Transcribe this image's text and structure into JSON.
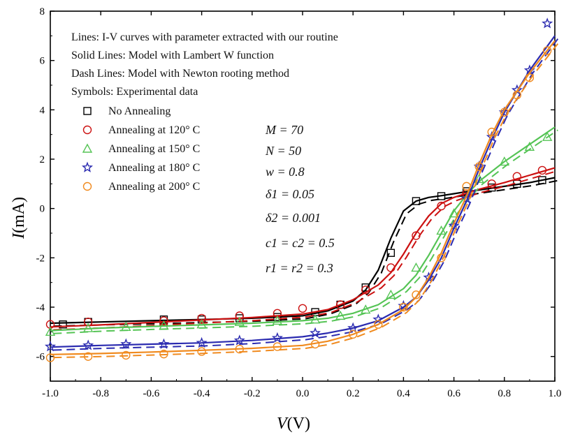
{
  "chart_data": {
    "type": "line",
    "xlabel_var": "V",
    "xlabel_unit": "(V)",
    "ylabel_var": "I",
    "ylabel_unit": "(mA)",
    "xlim": [
      -1.0,
      1.0
    ],
    "ylim": [
      -7,
      8
    ],
    "x_ticks": [
      -1.0,
      -0.8,
      -0.6,
      -0.4,
      -0.2,
      0.0,
      0.2,
      0.4,
      0.6,
      0.8,
      1.0
    ],
    "x_tick_labels": [
      "-1.0",
      "-0.8",
      "-0.6",
      "-0.4",
      "-0.2",
      "0.0",
      "0.2",
      "0.4",
      "0.6",
      "0.8",
      "1.0"
    ],
    "y_ticks": [
      -6,
      -4,
      -2,
      0,
      2,
      4,
      6,
      8
    ],
    "y_tick_labels": [
      "-6",
      "-4",
      "-2",
      "0",
      "2",
      "4",
      "6",
      "8"
    ],
    "notes": [
      "Lines: I-V curves with parameter extracted with our routine",
      "Solid Lines: Model with Lambert W function",
      "Dash Lines: Model with Newton rooting method",
      "Symbols: Experimental data"
    ],
    "params": [
      "M = 70",
      "N = 50",
      "w = 0.8",
      "δ1 = 0.05",
      "δ2 = 0.001",
      "c1 = c2 = 0.5",
      "r1 = r2 = 0.3"
    ],
    "series": [
      {
        "name": "No Annealing",
        "color": "#000000",
        "marker": "square",
        "x": [
          -1.0,
          -0.8,
          -0.6,
          -0.4,
          -0.2,
          0.0,
          0.1,
          0.2,
          0.25,
          0.3,
          0.35,
          0.4,
          0.45,
          0.5,
          0.55,
          0.6,
          0.65,
          0.7,
          0.8,
          0.9,
          1.0
        ],
        "y": [
          -4.65,
          -4.6,
          -4.55,
          -4.5,
          -4.45,
          -4.35,
          -4.15,
          -3.75,
          -3.3,
          -2.5,
          -1.2,
          -0.1,
          0.3,
          0.45,
          0.52,
          0.6,
          0.68,
          0.75,
          0.9,
          1.05,
          1.25
        ],
        "markers_x": [
          -0.95,
          -0.85,
          -0.55,
          -0.4,
          -0.25,
          -0.1,
          0.05,
          0.15,
          0.25,
          0.35,
          0.45,
          0.55,
          0.65,
          0.75,
          0.85,
          0.95
        ],
        "markers_y": [
          -4.7,
          -4.6,
          -4.5,
          -4.5,
          -4.45,
          -4.4,
          -4.2,
          -3.9,
          -3.2,
          -1.8,
          0.3,
          0.5,
          0.7,
          0.85,
          1.0,
          1.15
        ]
      },
      {
        "name": "Annealing at 120° C",
        "color": "#cc1111",
        "marker": "circle",
        "x": [
          -1.0,
          -0.8,
          -0.6,
          -0.4,
          -0.2,
          0.0,
          0.1,
          0.2,
          0.3,
          0.35,
          0.4,
          0.45,
          0.5,
          0.55,
          0.6,
          0.65,
          0.7,
          0.8,
          0.9,
          1.0
        ],
        "y": [
          -4.8,
          -4.72,
          -4.62,
          -4.52,
          -4.42,
          -4.28,
          -4.1,
          -3.7,
          -3.1,
          -2.6,
          -1.85,
          -1.0,
          -0.3,
          0.2,
          0.45,
          0.62,
          0.78,
          1.05,
          1.35,
          1.65
        ],
        "markers_x": [
          -1.0,
          -0.85,
          -0.55,
          -0.4,
          -0.25,
          -0.1,
          0.0,
          0.15,
          0.25,
          0.35,
          0.45,
          0.55,
          0.65,
          0.75,
          0.85,
          0.95
        ],
        "markers_y": [
          -4.7,
          -4.6,
          -4.55,
          -4.45,
          -4.35,
          -4.25,
          -4.05,
          -3.9,
          -3.3,
          -2.4,
          -1.1,
          0.1,
          0.6,
          1.0,
          1.3,
          1.55
        ]
      },
      {
        "name": "Annealing at 150° C",
        "color": "#55c455",
        "marker": "triangle",
        "x": [
          -1.0,
          -0.8,
          -0.6,
          -0.4,
          -0.2,
          0.0,
          0.1,
          0.2,
          0.3,
          0.4,
          0.45,
          0.5,
          0.55,
          0.6,
          0.65,
          0.7,
          0.8,
          0.9,
          1.0
        ],
        "y": [
          -4.95,
          -4.85,
          -4.78,
          -4.72,
          -4.65,
          -4.55,
          -4.45,
          -4.25,
          -3.9,
          -3.25,
          -2.7,
          -1.9,
          -1.0,
          -0.1,
          0.55,
          1.1,
          1.9,
          2.6,
          3.3
        ],
        "markers_x": [
          -1.0,
          -0.85,
          -0.7,
          -0.55,
          -0.4,
          -0.25,
          -0.1,
          0.05,
          0.15,
          0.25,
          0.35,
          0.45,
          0.55,
          0.6,
          0.7,
          0.8,
          0.9,
          0.97
        ],
        "markers_y": [
          -5.0,
          -4.85,
          -4.8,
          -4.75,
          -4.7,
          -4.6,
          -4.55,
          -4.5,
          -4.35,
          -4.1,
          -3.5,
          -2.4,
          -0.9,
          -0.2,
          1.2,
          1.9,
          2.5,
          2.9
        ]
      },
      {
        "name": "Annealing at 180° C",
        "color": "#2b2bb0",
        "marker": "star",
        "x": [
          -1.0,
          -0.8,
          -0.6,
          -0.4,
          -0.2,
          0.0,
          0.1,
          0.2,
          0.3,
          0.4,
          0.45,
          0.5,
          0.55,
          0.6,
          0.65,
          0.7,
          0.75,
          0.8,
          0.9,
          1.0
        ],
        "y": [
          -5.62,
          -5.55,
          -5.5,
          -5.45,
          -5.35,
          -5.2,
          -5.05,
          -4.85,
          -4.55,
          -4.0,
          -3.6,
          -2.9,
          -2.0,
          -0.8,
          0.3,
          1.6,
          2.8,
          3.9,
          5.6,
          7.0
        ],
        "markers_x": [
          -1.0,
          -0.85,
          -0.7,
          -0.55,
          -0.4,
          -0.25,
          -0.1,
          0.05,
          0.2,
          0.3,
          0.4,
          0.5,
          0.6,
          0.65,
          0.7,
          0.75,
          0.8,
          0.85,
          0.9,
          0.97
        ],
        "markers_y": [
          -5.6,
          -5.55,
          -5.5,
          -5.5,
          -5.45,
          -5.35,
          -5.25,
          -5.05,
          -4.85,
          -4.5,
          -3.95,
          -2.8,
          -0.7,
          0.4,
          1.7,
          2.9,
          3.9,
          4.8,
          5.6,
          7.5
        ]
      },
      {
        "name": "Annealing at 200° C",
        "color": "#f08a1e",
        "marker": "circle",
        "x": [
          -1.0,
          -0.8,
          -0.6,
          -0.4,
          -0.2,
          0.0,
          0.1,
          0.2,
          0.3,
          0.4,
          0.45,
          0.5,
          0.55,
          0.6,
          0.65,
          0.7,
          0.75,
          0.8,
          0.9,
          1.0
        ],
        "y": [
          -5.92,
          -5.88,
          -5.82,
          -5.75,
          -5.67,
          -5.55,
          -5.38,
          -5.1,
          -4.7,
          -4.1,
          -3.6,
          -2.8,
          -1.8,
          -0.6,
          0.5,
          1.8,
          3.0,
          4.0,
          5.5,
          6.8
        ],
        "markers_x": [
          -1.0,
          -0.85,
          -0.7,
          -0.55,
          -0.4,
          -0.25,
          -0.1,
          0.05,
          0.2,
          0.3,
          0.4,
          0.45,
          0.55,
          0.65,
          0.7,
          0.75,
          0.8,
          0.85,
          0.9,
          0.97
        ],
        "markers_y": [
          -6.05,
          -6.0,
          -5.95,
          -5.9,
          -5.8,
          -5.7,
          -5.6,
          -5.5,
          -5.1,
          -4.7,
          -4.0,
          -3.5,
          -2.0,
          0.9,
          1.7,
          3.1,
          3.9,
          4.6,
          5.3,
          6.4
        ]
      }
    ]
  }
}
